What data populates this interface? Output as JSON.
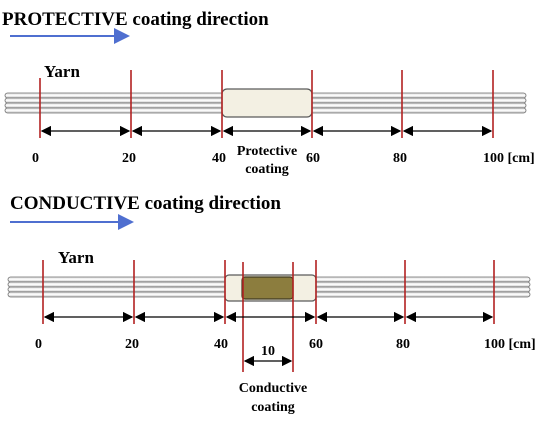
{
  "top": {
    "title_emphasis": "PROTECTIVE",
    "title_rest": " coating direction",
    "yarn_label": "Yarn",
    "ticks": [
      "0",
      "20",
      "40",
      "60",
      "80",
      "100 [cm]"
    ],
    "coating_label_line1": "Protective",
    "coating_label_line2": "coating"
  },
  "bottom": {
    "title_emphasis": "CONDUCTIVE",
    "title_rest": " coating direction",
    "yarn_label": "Yarn",
    "ticks": [
      "0",
      "20",
      "40",
      "60",
      "80",
      "100 [cm]"
    ],
    "segment_length": "10",
    "coating_label_line1": "Conductive",
    "coating_label_line2": "coating"
  },
  "colors": {
    "arrow_blue": "#4f6fd0",
    "marker_red": "#b22222",
    "protective_fill": "#f3f0e3",
    "conductive_fill": "#8c7d3e",
    "yarn_stroke": "#6e6e6e"
  }
}
